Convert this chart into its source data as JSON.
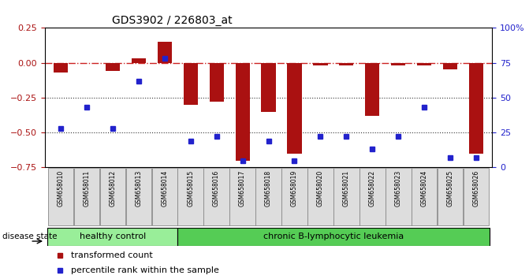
{
  "title": "GDS3902 / 226803_at",
  "samples": [
    "GSM658010",
    "GSM658011",
    "GSM658012",
    "GSM658013",
    "GSM658014",
    "GSM658015",
    "GSM658016",
    "GSM658017",
    "GSM658018",
    "GSM658019",
    "GSM658020",
    "GSM658021",
    "GSM658022",
    "GSM658023",
    "GSM658024",
    "GSM658025",
    "GSM658026"
  ],
  "bar_values": [
    -0.07,
    0.0,
    -0.06,
    0.03,
    0.15,
    -0.3,
    -0.28,
    -0.7,
    -0.35,
    -0.65,
    -0.02,
    -0.02,
    -0.38,
    -0.02,
    -0.02,
    -0.05,
    -0.65
  ],
  "blue_values": [
    -0.47,
    -0.32,
    -0.47,
    -0.13,
    0.03,
    -0.56,
    -0.53,
    -0.7,
    -0.56,
    -0.7,
    -0.53,
    -0.53,
    -0.62,
    -0.53,
    -0.32,
    -0.68,
    -0.68
  ],
  "ylim": [
    -0.75,
    0.25
  ],
  "yticks_left": [
    -0.75,
    -0.5,
    -0.25,
    0.0,
    0.25
  ],
  "yticks_right_labels": [
    "0",
    "25",
    "50",
    "75",
    "100%"
  ],
  "bar_color": "#AA1111",
  "blue_color": "#2222CC",
  "hline_color": "#CC2222",
  "dotted_color": "#333333",
  "healthy_color": "#99EE99",
  "leukemia_color": "#55CC55",
  "label_box_color": "#DDDDDD",
  "healthy_label": "healthy control",
  "leukemia_label": "chronic B-lymphocytic leukemia",
  "disease_state_label": "disease state",
  "legend_bar_label": "transformed count",
  "legend_blue_label": "percentile rank within the sample",
  "n_healthy": 5,
  "bar_width": 0.55
}
